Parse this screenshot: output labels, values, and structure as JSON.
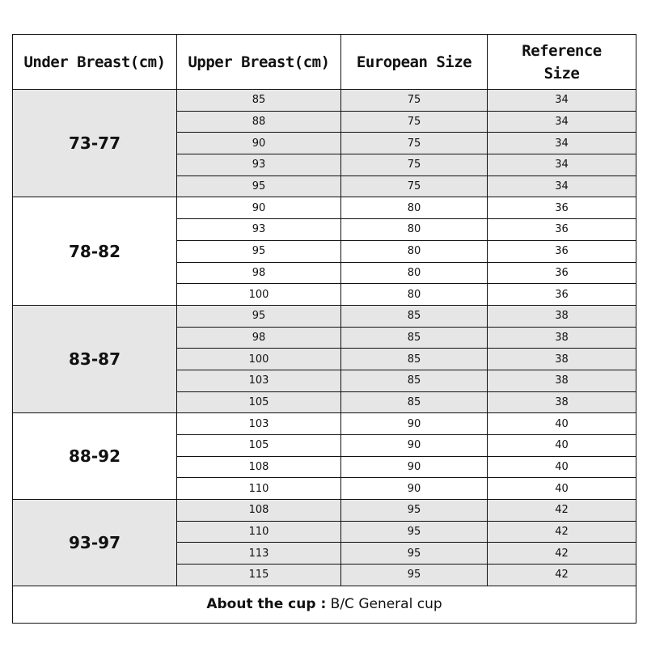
{
  "headers": [
    "Under Breast(cm)",
    "Upper Breast(cm)",
    "European Size",
    "Reference Size"
  ],
  "groups": [
    {
      "under": "73-77",
      "shaded": true,
      "rows": [
        [
          "85",
          "75",
          "34"
        ],
        [
          "88",
          "75",
          "34"
        ],
        [
          "90",
          "75",
          "34"
        ],
        [
          "93",
          "75",
          "34"
        ],
        [
          "95",
          "75",
          "34"
        ]
      ]
    },
    {
      "under": "78-82",
      "shaded": false,
      "rows": [
        [
          "90",
          "80",
          "36"
        ],
        [
          "93",
          "80",
          "36"
        ],
        [
          "95",
          "80",
          "36"
        ],
        [
          "98",
          "80",
          "36"
        ],
        [
          "100",
          "80",
          "36"
        ]
      ]
    },
    {
      "under": "83-87",
      "shaded": true,
      "rows": [
        [
          "95",
          "85",
          "38"
        ],
        [
          "98",
          "85",
          "38"
        ],
        [
          "100",
          "85",
          "38"
        ],
        [
          "103",
          "85",
          "38"
        ],
        [
          "105",
          "85",
          "38"
        ]
      ]
    },
    {
      "under": "88-92",
      "shaded": false,
      "rows": [
        [
          "103",
          "90",
          "40"
        ],
        [
          "105",
          "90",
          "40"
        ],
        [
          "108",
          "90",
          "40"
        ],
        [
          "110",
          "90",
          "40"
        ]
      ]
    },
    {
      "under": "93-97",
      "shaded": true,
      "rows": [
        [
          "108",
          "95",
          "42"
        ],
        [
          "110",
          "95",
          "42"
        ],
        [
          "113",
          "95",
          "42"
        ],
        [
          "115",
          "95",
          "42"
        ]
      ]
    }
  ],
  "footer": {
    "label": "About the cup :",
    "value": " B/C General cup"
  },
  "colors": {
    "shade": "#e6e6e6",
    "border": "#111111"
  }
}
